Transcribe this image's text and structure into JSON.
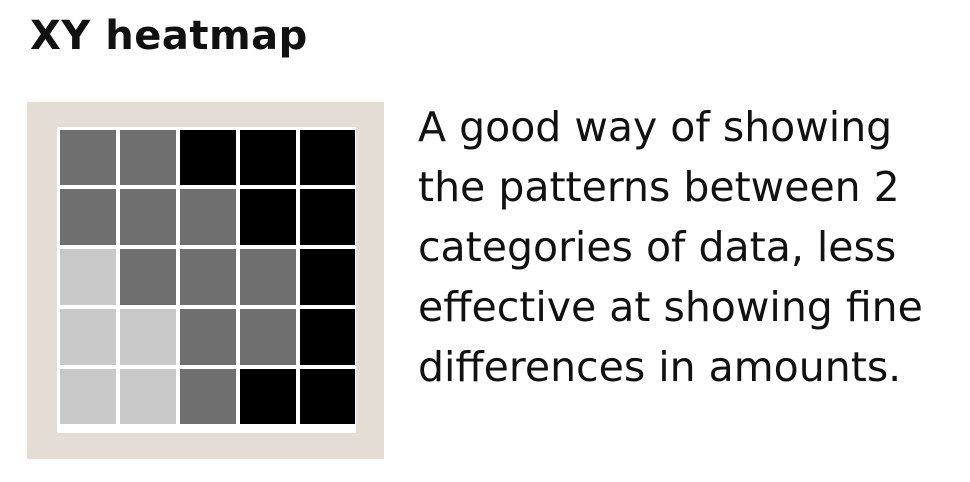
{
  "title": "XY heatmap",
  "description_lines": [
    "A good way of showing",
    "the patterns between 2",
    "categories of data, less",
    "effective at showing fine",
    "differences in amounts."
  ],
  "colors": {
    "panel_background": "#e3ddd5",
    "grid_gap": "#ffffff",
    "level_light": "#c8c8c8",
    "level_medium": "#6f6f70",
    "level_dark": "#000000"
  },
  "heatmap_levels": [
    [
      "medium",
      "medium",
      "dark",
      "dark",
      "dark"
    ],
    [
      "medium",
      "medium",
      "medium",
      "dark",
      "dark"
    ],
    [
      "light",
      "medium",
      "medium",
      "medium",
      "dark"
    ],
    [
      "light",
      "light",
      "medium",
      "medium",
      "dark"
    ],
    [
      "light",
      "light",
      "medium",
      "dark",
      "dark"
    ]
  ]
}
